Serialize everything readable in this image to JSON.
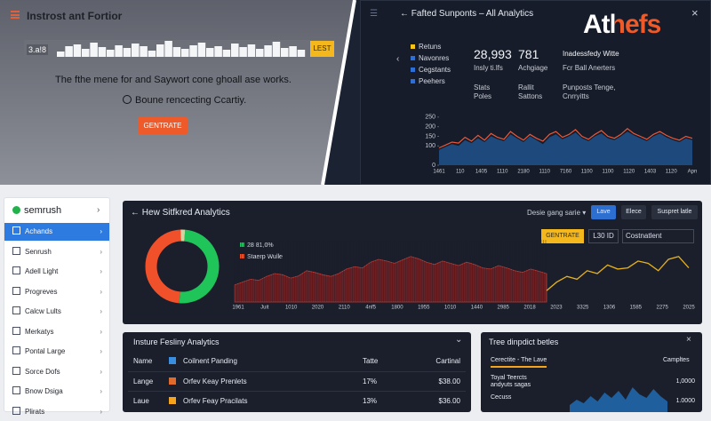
{
  "top_left": {
    "title": "Instrost ant Fortior",
    "input": "3.a!8",
    "button": "LEST",
    "bars": [
      6,
      12,
      14,
      9,
      16,
      11,
      8,
      13,
      10,
      15,
      12,
      7,
      14,
      18,
      11,
      9,
      13,
      16,
      10,
      12,
      8,
      15,
      11,
      14,
      9,
      13,
      17,
      10,
      12,
      8
    ],
    "headline": "The fthe mene for and Saywort cone ghoall ase works.",
    "subline": "Boune rencecting Ccartiy.",
    "cta": "GENTRATE"
  },
  "top_right": {
    "title": "Fafted Sunponts – All Analytics",
    "logo": "Athefs",
    "legend": [
      {
        "name": "Retuns",
        "color": "#f5c518"
      },
      {
        "name": "Navonres",
        "color": "#2e6fd6"
      },
      {
        "name": "Cegstants",
        "color": "#2e6fd6"
      },
      {
        "name": "Peehers",
        "color": "#2e6fd6"
      }
    ],
    "stats": [
      {
        "value": "28,993",
        "label": "Insly ti.lfs",
        "sub": [
          "Stats",
          "Poles"
        ]
      },
      {
        "value": "781",
        "label": "Achgiage",
        "sub": [
          "Rallit",
          "Sattons"
        ]
      },
      {
        "value": "Inadessfedy Witte",
        "label": "Fcr Ball Anerters",
        "sub": [
          "Punposts Tenge,",
          "Cnrryitts"
        ]
      }
    ],
    "chart": {
      "ylim": [
        0,
        300
      ],
      "yticks": [
        250,
        200,
        150,
        100,
        0
      ],
      "x_labels": [
        "1461",
        "110",
        "1405",
        "1110",
        "2180",
        "1110",
        "7160",
        "1100",
        "1100",
        "1120",
        "1403",
        "1120",
        "Apn"
      ],
      "area": [
        80,
        95,
        110,
        100,
        130,
        115,
        140,
        120,
        150,
        135,
        125,
        160,
        140,
        120,
        150,
        130,
        110,
        145,
        160,
        135,
        150,
        170,
        140,
        125,
        150,
        165,
        140,
        130,
        150,
        175,
        155,
        140,
        125,
        150,
        165,
        145,
        130,
        120,
        140,
        130
      ],
      "line": [
        90,
        105,
        120,
        115,
        145,
        125,
        155,
        130,
        165,
        145,
        135,
        175,
        150,
        130,
        160,
        140,
        125,
        160,
        175,
        145,
        160,
        185,
        150,
        135,
        160,
        180,
        150,
        140,
        160,
        190,
        165,
        150,
        135,
        160,
        175,
        155,
        140,
        130,
        150,
        140
      ]
    }
  },
  "sidebar": {
    "brand": "semrush",
    "items": [
      "Achands",
      "Senrush",
      "Adell Light",
      "Progreves",
      "Calcw Lults",
      "Merkatys",
      "Pontal Large",
      "Sorce Dofs",
      "Bnow Dsiga",
      "Plirats"
    ]
  },
  "analytics": {
    "title": "Hew Sitfkred Analytics",
    "dropdown": "Desie gang sarie",
    "buttons": [
      "Lave",
      "Elece",
      "Suspret latle"
    ],
    "cta": "GENTRATE",
    "controls": [
      "L30 ID",
      "Costnatlent"
    ],
    "donut": [
      {
        "name": "28 81,0%",
        "color": "#20c55a",
        "value": 50
      },
      {
        "name": "Staerp Wulle",
        "color": "#f0502a",
        "value": 48
      }
    ],
    "donut_rest": {
      "color": "#d8d0a0",
      "value": 2
    },
    "ylim": [
      0,
      100
    ],
    "x_labels": [
      "1961",
      "Juit",
      "1010",
      "2020",
      "2110",
      "4nf5",
      "1800",
      "1955",
      "1010",
      "1440",
      "2985",
      "2018",
      "2023",
      "3325",
      "1306",
      "1585",
      "2275",
      "2025"
    ],
    "red": [
      30,
      35,
      40,
      38,
      45,
      50,
      48,
      42,
      46,
      55,
      52,
      48,
      45,
      50,
      58,
      62,
      60,
      70,
      75,
      72,
      68,
      74,
      80,
      76,
      70,
      66,
      72,
      68,
      64,
      70,
      66,
      60,
      58,
      64,
      60,
      55,
      52,
      58,
      54,
      50
    ],
    "yellow": [
      20,
      35,
      45,
      40,
      55,
      50,
      65,
      58,
      60,
      72,
      68,
      55,
      75,
      80,
      60
    ]
  },
  "table": {
    "title": "Insture Fesliny Analytics",
    "header": [
      "Name",
      "Coilnent Panding",
      "Tatte",
      "Cartinal"
    ],
    "rows": [
      [
        "Lange",
        "Orfev Keay Prenlets",
        "17%",
        "$38.00"
      ],
      [
        "Laue",
        "Orfev Feay Pracilats",
        "13%",
        "$36.00"
      ]
    ]
  },
  "tree": {
    "title": "Tree dinpdict betles",
    "tabs": [
      "Cerectite - The Lave",
      "Campltes"
    ],
    "rows": [
      [
        "Toyal Teercts",
        "andyuts sagas",
        "1,0000"
      ],
      [
        "Cecuss",
        "",
        "1.0000"
      ]
    ],
    "ylim": [
      0,
      100
    ],
    "area": [
      20,
      35,
      25,
      45,
      30,
      55,
      40,
      60,
      35,
      70,
      50,
      40,
      65,
      45,
      30
    ]
  }
}
